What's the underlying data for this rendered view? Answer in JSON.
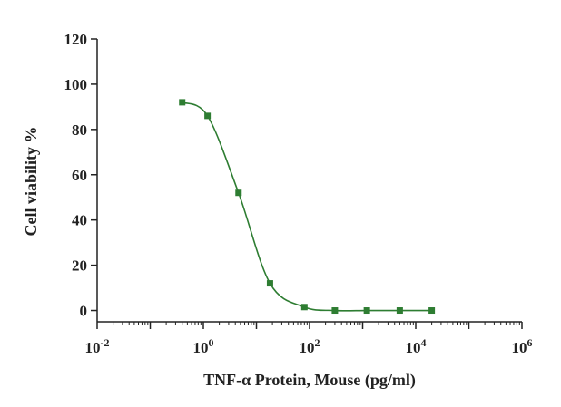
{
  "chart_data": {
    "type": "scatter",
    "title": "",
    "xlabel": "TNF-α Protein, Mouse (pg/ml)",
    "ylabel": "Cell viability %",
    "x_scale": "log10",
    "xlim": [
      0.01,
      1000000
    ],
    "ylim": [
      -5,
      120
    ],
    "x_ticks": [
      {
        "value": 0.01,
        "base": "10",
        "exp": "-2"
      },
      {
        "value": 1,
        "base": "10",
        "exp": "0"
      },
      {
        "value": 100,
        "base": "10",
        "exp": "2"
      },
      {
        "value": 10000,
        "base": "10",
        "exp": "4"
      },
      {
        "value": 1000000,
        "base": "10",
        "exp": "6"
      }
    ],
    "y_ticks": [
      0,
      20,
      40,
      60,
      80,
      100,
      120
    ],
    "grid": false,
    "legend": "none",
    "series": [
      {
        "color": "#2e7d32",
        "marker": "square",
        "fit_curve": true,
        "x": [
          0.4,
          1.2,
          4.6,
          18,
          80,
          300,
          1200,
          5000,
          20000
        ],
        "y": [
          92,
          86,
          52,
          12,
          1.5,
          0,
          0,
          0,
          0
        ]
      }
    ]
  }
}
